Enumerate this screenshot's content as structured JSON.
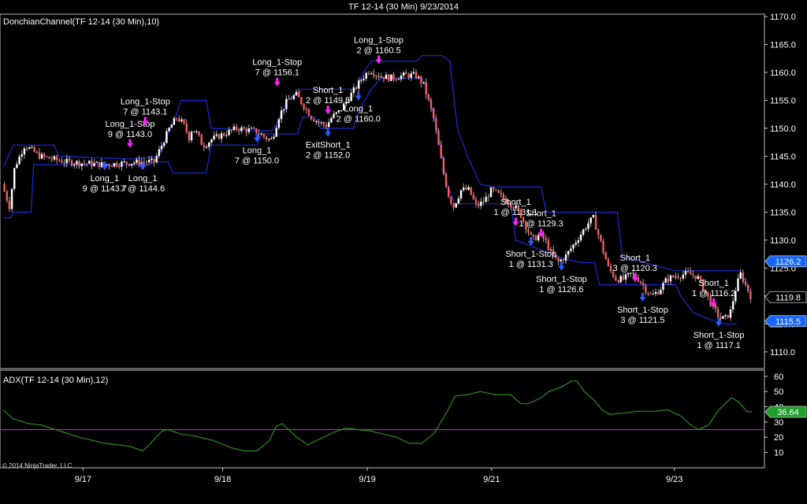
{
  "window": {
    "title": "TF 12-14 (30 Min)  9/23/2014"
  },
  "price_panel": {
    "indicator_label": "DonchianChannel(TF 12-14 (30 Min),10)"
  },
  "adx_panel": {
    "indicator_label": "ADX(TF 12-14 (30 Min),12)"
  },
  "copyright": "© 2014 NinjaTrader, LLC",
  "colors": {
    "background": "#000000",
    "up_candle": "#ffffff",
    "down_candle": "#ff5a5a",
    "channel": "#1a2bd6",
    "adx_line": "#2e8b1e",
    "adx_threshold": "#9b2fb0",
    "buy_arrow": "#2a5cff",
    "sell_arrow": "#ff22ff",
    "badge_blue": "#1565ff",
    "badge_green": "#1f9e2a"
  },
  "chart_data": [
    {
      "type": "candlestick",
      "title": "TF 12-14 (30 Min)  9/23/2014",
      "series_label": "DonchianChannel(TF 12-14 (30 Min),10)",
      "ylim": [
        1108,
        1170
      ],
      "y_ticks": [
        "1110.0",
        "1115.0",
        "1120.0",
        "1125.0",
        "1130.0",
        "1135.0",
        "1140.0",
        "1145.0",
        "1150.0",
        "1155.0",
        "1160.0",
        "1165.0",
        "1170.0"
      ],
      "x_ticks": [
        "9/17",
        "9/18",
        "9/19",
        "9/21",
        "9/23"
      ],
      "close_path": [
        [
          0,
          1140
        ],
        [
          6,
          1136
        ],
        [
          10,
          1143
        ],
        [
          18,
          1147
        ],
        [
          30,
          1145
        ],
        [
          50,
          1144
        ],
        [
          80,
          1143.5
        ],
        [
          110,
          1144
        ],
        [
          120,
          1144
        ],
        [
          124,
          1146
        ],
        [
          128,
          1148
        ],
        [
          132,
          1150
        ],
        [
          138,
          1152
        ],
        [
          142,
          1151
        ],
        [
          145,
          1150
        ],
        [
          147,
          1148
        ],
        [
          150,
          1150
        ],
        [
          154,
          1149
        ],
        [
          158,
          1147
        ],
        [
          160,
          1147
        ],
        [
          165,
          1148
        ],
        [
          175,
          1149
        ],
        [
          185,
          1150
        ],
        [
          200,
          1149.5
        ],
        [
          210,
          1148
        ],
        [
          213,
          1148
        ],
        [
          218,
          1152
        ],
        [
          225,
          1155
        ],
        [
          232,
          1156
        ],
        [
          238,
          1154
        ],
        [
          244,
          1152
        ],
        [
          250,
          1151
        ],
        [
          256,
          1150.5
        ],
        [
          260,
          1152
        ],
        [
          266,
          1153
        ],
        [
          272,
          1155
        ],
        [
          278,
          1157
        ],
        [
          284,
          1159
        ],
        [
          290,
          1160.5
        ],
        [
          296,
          1159.5
        ],
        [
          306,
          1159
        ],
        [
          318,
          1159.5
        ],
        [
          326,
          1159.5
        ],
        [
          332,
          1158
        ],
        [
          336,
          1155
        ],
        [
          340,
          1152
        ],
        [
          344,
          1147
        ],
        [
          348,
          1142
        ],
        [
          352,
          1138
        ],
        [
          356,
          1136
        ],
        [
          362,
          1139
        ],
        [
          368,
          1139
        ],
        [
          374,
          1136
        ],
        [
          380,
          1137
        ],
        [
          386,
          1139
        ],
        [
          392,
          1138
        ],
        [
          398,
          1137
        ],
        [
          404,
          1136
        ],
        [
          408,
          1135
        ],
        [
          414,
          1132
        ],
        [
          418,
          1130
        ],
        [
          424,
          1131
        ],
        [
          428,
          1130
        ],
        [
          432,
          1128
        ],
        [
          438,
          1126
        ],
        [
          444,
          1127
        ],
        [
          450,
          1129
        ],
        [
          456,
          1131
        ],
        [
          462,
          1133
        ],
        [
          466,
          1134
        ],
        [
          470,
          1131
        ],
        [
          474,
          1128
        ],
        [
          478,
          1125
        ],
        [
          484,
          1123
        ],
        [
          490,
          1123
        ],
        [
          496,
          1124
        ],
        [
          502,
          1123
        ],
        [
          508,
          1121
        ],
        [
          512,
          1120
        ],
        [
          518,
          1121
        ],
        [
          524,
          1123
        ],
        [
          530,
          1123.5
        ],
        [
          540,
          1124
        ],
        [
          548,
          1123.5
        ],
        [
          554,
          1121
        ],
        [
          560,
          1118
        ],
        [
          566,
          1116
        ],
        [
          570,
          1116
        ],
        [
          574,
          1117
        ],
        [
          578,
          1121
        ],
        [
          582,
          1124
        ],
        [
          586,
          1122
        ],
        [
          590,
          1120
        ]
      ],
      "upper_channel": [
        [
          0,
          1143
        ],
        [
          8,
          1147
        ],
        [
          40,
          1147
        ],
        [
          44,
          1145
        ],
        [
          100,
          1144.5
        ],
        [
          122,
          1145
        ],
        [
          130,
          1149
        ],
        [
          136,
          1152
        ],
        [
          140,
          1155
        ],
        [
          160,
          1155
        ],
        [
          164,
          1150
        ],
        [
          212,
          1149.5
        ],
        [
          216,
          1151
        ],
        [
          224,
          1155
        ],
        [
          236,
          1157
        ],
        [
          278,
          1157
        ],
        [
          284,
          1160
        ],
        [
          290,
          1162
        ],
        [
          326,
          1162
        ],
        [
          330,
          1163
        ],
        [
          346,
          1163
        ],
        [
          352,
          1162
        ],
        [
          358,
          1150
        ],
        [
          366,
          1145
        ],
        [
          376,
          1140
        ],
        [
          386,
          1139.5
        ],
        [
          424,
          1139.5
        ],
        [
          428,
          1135
        ],
        [
          484,
          1135
        ],
        [
          488,
          1127
        ],
        [
          530,
          1124.5
        ],
        [
          580,
          1124.5
        ],
        [
          590,
          1121
        ]
      ],
      "lower_channel": [
        [
          0,
          1134
        ],
        [
          6,
          1134
        ],
        [
          8,
          1135
        ],
        [
          22,
          1135
        ],
        [
          24,
          1143.5
        ],
        [
          115,
          1143.5
        ],
        [
          120,
          1144
        ],
        [
          130,
          1144
        ],
        [
          134,
          1142
        ],
        [
          160,
          1142
        ],
        [
          164,
          1147
        ],
        [
          200,
          1147
        ],
        [
          204,
          1149
        ],
        [
          232,
          1149
        ],
        [
          236,
          1152
        ],
        [
          246,
          1152
        ],
        [
          250,
          1150
        ],
        [
          276,
          1150
        ],
        [
          280,
          1153
        ],
        [
          290,
          1157
        ],
        [
          298,
          1159
        ],
        [
          330,
          1159
        ],
        [
          334,
          1157
        ],
        [
          342,
          1150
        ],
        [
          350,
          1140
        ],
        [
          356,
          1136.5
        ],
        [
          400,
          1136.5
        ],
        [
          404,
          1130
        ],
        [
          444,
          1126.5
        ],
        [
          456,
          1126
        ],
        [
          466,
          1126
        ],
        [
          470,
          1122
        ],
        [
          530,
          1122
        ],
        [
          534,
          1120
        ],
        [
          544,
          1117
        ],
        [
          566,
          1115
        ],
        [
          578,
          1115
        ]
      ],
      "badges": [
        {
          "label": "1126.2",
          "value": 1126.2,
          "color": "#1565ff"
        },
        {
          "label": "1119.8",
          "value": 1119.8,
          "color": "#000000"
        },
        {
          "label": "1115.5",
          "value": 1115.5,
          "color": "#1565ff"
        }
      ],
      "trades": [
        {
          "side": "buy",
          "x": 80,
          "price": 1142.5,
          "lines": [
            "Long_1",
            "9 @ 1143.7"
          ]
        },
        {
          "side": "buy",
          "x": 110,
          "price": 1142.5,
          "lines": [
            "Long_1",
            "7 @ 1144.6"
          ]
        },
        {
          "side": "sell",
          "x": 100,
          "price": 1146.5,
          "lines": [
            "Long_1-Stop",
            "9 @ 1143.0"
          ]
        },
        {
          "side": "sell",
          "x": 112,
          "price": 1150.5,
          "lines": [
            "Long_1-Stop",
            "7 @ 1143.1"
          ]
        },
        {
          "side": "buy",
          "x": 200,
          "price": 1147.5,
          "lines": [
            "Long_1",
            "7 @ 1150.0"
          ]
        },
        {
          "side": "sell",
          "x": 216,
          "price": 1157.5,
          "lines": [
            "Long_1-Stop",
            "7 @ 1156.1"
          ]
        },
        {
          "side": "sell",
          "x": 256,
          "price": 1152.5,
          "lines": [
            "Short_1",
            "2 @ 1149.5"
          ]
        },
        {
          "side": "buy",
          "x": 256,
          "price": 1148.5,
          "lines": [
            "ExitShort_1",
            "2 @ 1152.0"
          ]
        },
        {
          "side": "buy",
          "x": 280,
          "price": 1155,
          "lines": [
            "Long_1",
            "2 @ 1160.0"
          ]
        },
        {
          "side": "sell",
          "x": 296,
          "price": 1161.5,
          "lines": [
            "Long_1-Stop",
            "2 @ 1160.5"
          ]
        },
        {
          "side": "sell",
          "x": 404,
          "price": 1132.5,
          "lines": [
            "Short_1",
            "1 @ 1131.1"
          ]
        },
        {
          "side": "buy",
          "x": 416,
          "price": 1129,
          "lines": [
            "Short_1-Stop",
            "1 @ 1131.3"
          ]
        },
        {
          "side": "sell",
          "x": 424,
          "price": 1130.5,
          "lines": [
            "Short_1",
            "1 @ 1129.3"
          ]
        },
        {
          "side": "buy",
          "x": 440,
          "price": 1124.5,
          "lines": [
            "Short_1-Stop",
            "1 @ 1126.6"
          ]
        },
        {
          "side": "sell",
          "x": 498,
          "price": 1122.5,
          "lines": [
            "Short_1",
            "3 @ 1120.3"
          ]
        },
        {
          "side": "buy",
          "x": 504,
          "price": 1119,
          "lines": [
            "Short_1-Stop",
            "3 @ 1121.5"
          ]
        },
        {
          "side": "sell",
          "x": 560,
          "price": 1118,
          "lines": [
            "Short_1",
            "1 @ 1116.2"
          ]
        },
        {
          "side": "buy",
          "x": 564,
          "price": 1114.5,
          "lines": [
            "Short_1-Stop",
            "1 @ 1117.1"
          ]
        }
      ]
    },
    {
      "type": "line",
      "series_label": "ADX(TF 12-14 (30 Min),12)",
      "ylim": [
        2,
        62
      ],
      "y_ticks": [
        "10",
        "20",
        "30",
        "40",
        "50",
        "60"
      ],
      "threshold": 25,
      "badge": {
        "label": "36.64",
        "value": 36.64,
        "color": "#1f9e2a"
      },
      "values": [
        [
          0,
          38
        ],
        [
          8,
          32
        ],
        [
          20,
          29
        ],
        [
          30,
          28
        ],
        [
          45,
          24
        ],
        [
          60,
          20
        ],
        [
          80,
          16
        ],
        [
          100,
          14
        ],
        [
          110,
          11
        ],
        [
          115,
          15
        ],
        [
          125,
          24
        ],
        [
          130,
          25
        ],
        [
          140,
          22
        ],
        [
          150,
          21
        ],
        [
          165,
          18
        ],
        [
          180,
          13
        ],
        [
          190,
          11
        ],
        [
          200,
          11
        ],
        [
          210,
          18
        ],
        [
          215,
          27
        ],
        [
          220,
          29
        ],
        [
          230,
          21
        ],
        [
          240,
          15
        ],
        [
          250,
          19
        ],
        [
          260,
          23
        ],
        [
          270,
          26
        ],
        [
          280,
          25
        ],
        [
          290,
          24
        ],
        [
          300,
          22
        ],
        [
          310,
          20
        ],
        [
          320,
          16
        ],
        [
          330,
          16
        ],
        [
          340,
          23
        ],
        [
          350,
          37
        ],
        [
          356,
          47
        ],
        [
          366,
          48
        ],
        [
          376,
          50
        ],
        [
          388,
          48
        ],
        [
          400,
          48
        ],
        [
          408,
          42
        ],
        [
          414,
          42
        ],
        [
          424,
          46
        ],
        [
          430,
          50
        ],
        [
          440,
          53
        ],
        [
          448,
          57
        ],
        [
          452,
          57
        ],
        [
          458,
          50
        ],
        [
          466,
          44
        ],
        [
          472,
          38
        ],
        [
          478,
          35
        ],
        [
          490,
          36
        ],
        [
          500,
          37
        ],
        [
          512,
          37
        ],
        [
          524,
          38
        ],
        [
          534,
          34
        ],
        [
          542,
          28
        ],
        [
          548,
          25
        ],
        [
          556,
          28
        ],
        [
          564,
          38
        ],
        [
          574,
          46
        ],
        [
          580,
          43
        ],
        [
          586,
          37
        ],
        [
          590,
          36.64
        ]
      ]
    }
  ]
}
